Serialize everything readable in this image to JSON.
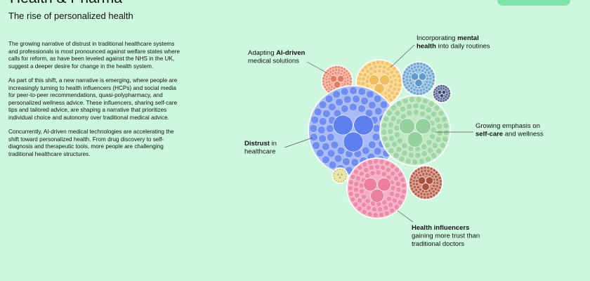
{
  "header": {
    "title": "Health & Pharma",
    "subtitle": "The rise of personalized health"
  },
  "paragraphs": [
    "The growing narrative of distrust in traditional healthcare systems and professionals is most pronounced against welfare states where calls for reform, as have been leveled against the NHS in the UK, suggest a deeper desire for change in the health system.",
    "As part of this shift, a new narrative is emerging, where people are increasingly turning to health influencers (HCPs) and social media for peer-to-peer recommendations, quasi-polypharmacy, and personalized wellness advice. These influencers, sharing self-care tips and tailored advice, are shaping a narrative that prioritizes individual choice and autonomy over traditional medical advice.",
    "Concurrently, AI-driven medical technologies are accelerating the shift toward personalized health. From drug discovery to self-diagnosis and therapeutic tools, more people are challenging traditional healthcare structures."
  ],
  "labels": [
    {
      "lines": [
        [
          "Adapting ",
          {
            "b": "AI-driven"
          }
        ],
        [
          "medical solutions"
        ]
      ]
    },
    {
      "lines": [
        [
          "Incorporating ",
          {
            "b": "mental"
          }
        ],
        [
          {
            "b": "health"
          },
          " into daily routines"
        ]
      ]
    },
    {
      "lines": [
        [
          "Growing emphasis on"
        ],
        [
          {
            "b": "self-care"
          },
          " and wellness"
        ]
      ]
    },
    {
      "lines": [
        [
          {
            "b": "Distrust"
          },
          " in"
        ],
        [
          "healthcare"
        ]
      ]
    },
    {
      "lines": [
        [
          {
            "b": "Health influencers"
          }
        ],
        [
          "gaining more trust than"
        ],
        [
          "traditional doctors"
        ]
      ]
    }
  ]
}
